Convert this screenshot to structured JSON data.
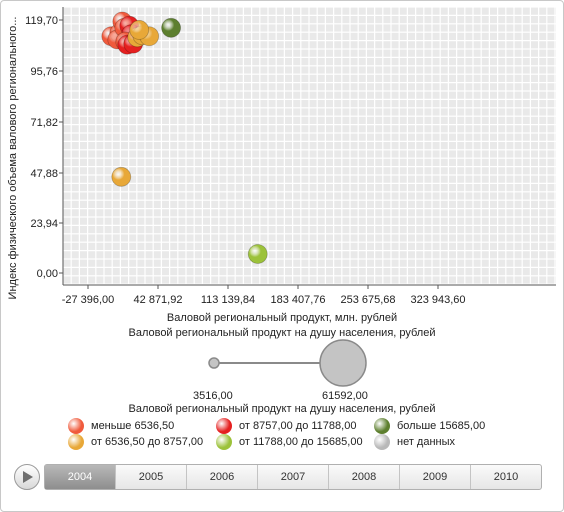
{
  "chart_data": {
    "type": "scatter",
    "xlabel": "Валовой региональный продукт, млн. рублей",
    "ylabel": "Индекс физического объема валового регионального...",
    "size_label": "Валовой региональный продукт на душу населения, рублей",
    "x_ticks": [
      "-27 396,00",
      "42 871,92",
      "113 139,84",
      "183 407,76",
      "253 675,68",
      "323 943,60"
    ],
    "x_tick_values": [
      -27396.0,
      42871.92,
      113139.84,
      183407.76,
      253675.68,
      323943.6
    ],
    "y_ticks": [
      "0,00",
      "23,94",
      "47,88",
      "71,82",
      "95,76",
      "119,70"
    ],
    "y_tick_values": [
      0.0,
      23.94,
      47.88,
      71.82,
      95.76,
      119.7
    ],
    "xlim": [
      -27396.0,
      323943.6
    ],
    "ylim": [
      0,
      119.7
    ],
    "grid": true,
    "points": [
      {
        "x": -4000,
        "y": 112.0,
        "color": "#f05a3c"
      },
      {
        "x": 4000,
        "y": 113.5,
        "color": "#f05a3c"
      },
      {
        "x": 2000,
        "y": 110.5,
        "color": "#f05a3c"
      },
      {
        "x": 7000,
        "y": 119.0,
        "color": "#f05a3c"
      },
      {
        "x": 9000,
        "y": 116.0,
        "color": "#f05a3c"
      },
      {
        "x": 14000,
        "y": 117.0,
        "color": "#e52020"
      },
      {
        "x": 16000,
        "y": 113.0,
        "color": "#e52020"
      },
      {
        "x": 10000,
        "y": 109.5,
        "color": "#f05a3c"
      },
      {
        "x": 12000,
        "y": 108.0,
        "color": "#e52020"
      },
      {
        "x": 18000,
        "y": 108.5,
        "color": "#e52020"
      },
      {
        "x": 22000,
        "y": 111.5,
        "color": "#e8a838"
      },
      {
        "x": 27000,
        "y": 112.5,
        "color": "#e8a838"
      },
      {
        "x": 34000,
        "y": 112.0,
        "color": "#e8a838"
      },
      {
        "x": 24000,
        "y": 115.0,
        "color": "#e8a838"
      },
      {
        "x": 6000,
        "y": 45.5,
        "color": "#e8a838"
      },
      {
        "x": 56000,
        "y": 116.0,
        "color": "#5d7f2e"
      },
      {
        "x": 143000,
        "y": 9.0,
        "color": "#9cc23a"
      }
    ],
    "size_legend": {
      "min": "3516,00",
      "max": "61592,00"
    },
    "legend": [
      {
        "label": "меньше 6536,50",
        "color": "#f05a3c"
      },
      {
        "label": "от 8757,00 до 11788,00",
        "color": "#e52020"
      },
      {
        "label": "больше 15685,00",
        "color": "#5d7f2e"
      },
      {
        "label": "от 6536,50 до 8757,00",
        "color": "#e8a838"
      },
      {
        "label": "от 11788,00 до 15685,00",
        "color": "#9cc23a"
      },
      {
        "label": "нет данных",
        "color": "#b8b8b8"
      }
    ]
  },
  "timeline": {
    "years": [
      "2004",
      "2005",
      "2006",
      "2007",
      "2008",
      "2009",
      "2010"
    ],
    "active": "2004"
  }
}
